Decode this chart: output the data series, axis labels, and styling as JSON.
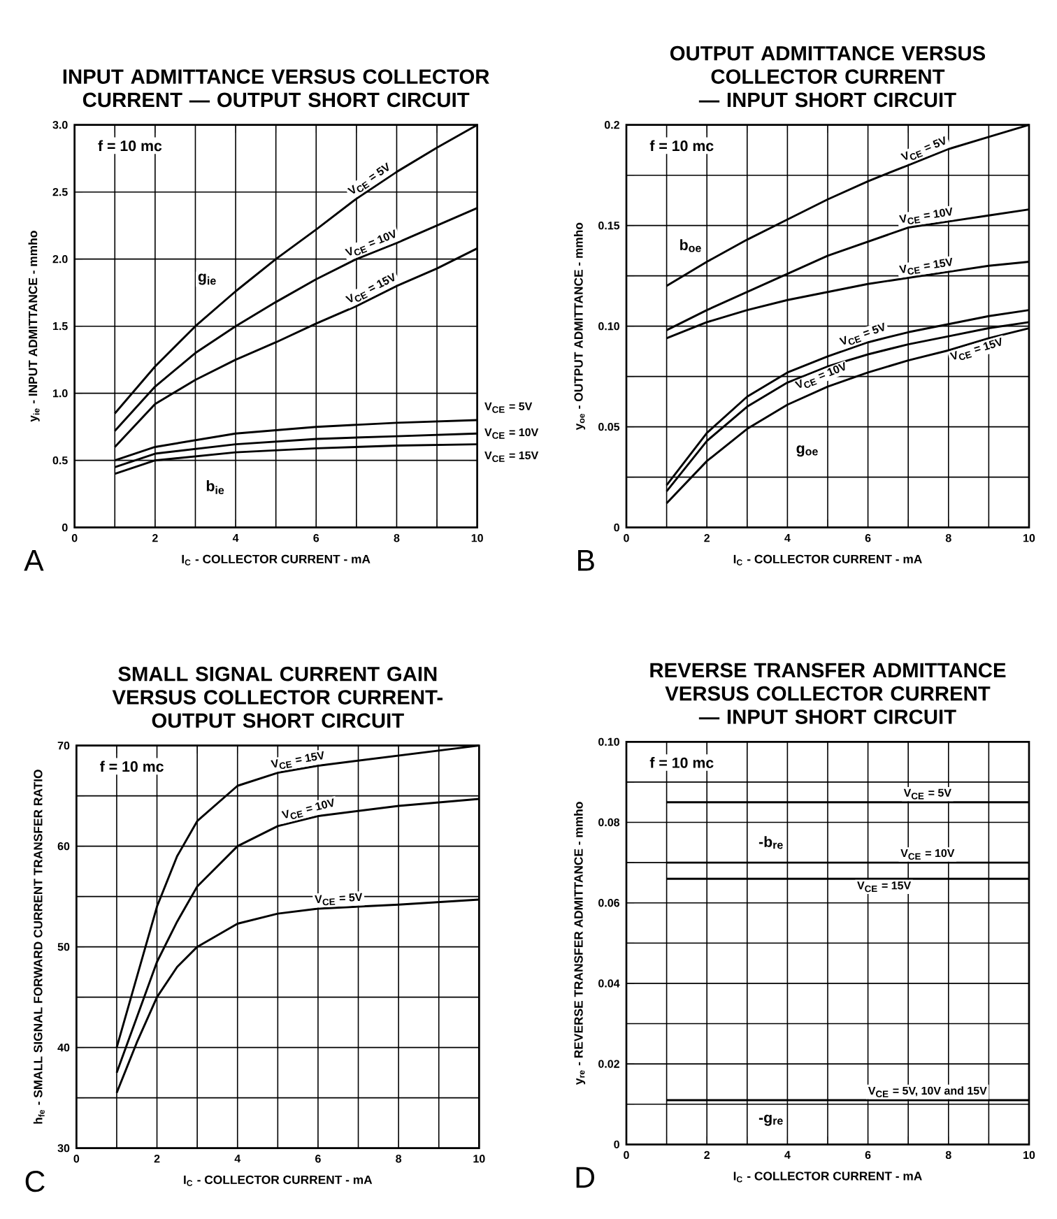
{
  "chart_data": [
    {
      "type": "line",
      "title": "INPUT ADMITTANCE VERSUS COLLECTOR CURRENT — OUTPUT SHORT CIRCUIT",
      "xlabel": "I$_{C}$ - COLLECTOR CURRENT - mA",
      "ylabel": "y$_{ie}$ - INPUT ADMITTANCE - mmho",
      "xlim": [
        0,
        10
      ],
      "ylim": [
        0,
        3
      ],
      "xticks": [
        0,
        {
          "value": 1,
          "label": null
        },
        2,
        {
          "value": 3,
          "label": null
        },
        4,
        {
          "value": 5,
          "label": null
        },
        6,
        {
          "value": 7,
          "label": null
        },
        8,
        {
          "value": 9,
          "label": null
        },
        10
      ],
      "yticks": [
        0,
        0.5,
        {
          "value": 1,
          "label": "1.0"
        },
        1.5,
        {
          "value": 2,
          "label": "2.0"
        },
        2.5,
        {
          "value": 3,
          "label": "3.0"
        }
      ],
      "grid": true,
      "annotations": [
        "f = 10 mc",
        "A",
        "g$_{ie}$",
        "b$_{ie}$"
      ],
      "series": [
        {
          "name": "V$_{CE}$ = 5V",
          "color": "#000000",
          "x": [
            1,
            2,
            3,
            4,
            5,
            6,
            7,
            8,
            9,
            10
          ],
          "values": [
            0.85,
            1.2,
            1.5,
            1.76,
            2.0,
            2.22,
            2.45,
            2.65,
            2.83,
            3.0
          ]
        },
        {
          "name": "V$_{CE}$ = 10V",
          "color": "#000000",
          "x": [
            1,
            2,
            3,
            4,
            5,
            6,
            7,
            8,
            9,
            10
          ],
          "values": [
            0.72,
            1.05,
            1.3,
            1.5,
            1.68,
            1.85,
            2.0,
            2.12,
            2.25,
            2.38
          ]
        },
        {
          "name": "V$_{CE}$ = 15V",
          "color": "#000000",
          "x": [
            1,
            2,
            3,
            4,
            5,
            6,
            7,
            8,
            9,
            10
          ],
          "values": [
            0.6,
            0.92,
            1.1,
            1.25,
            1.38,
            1.52,
            1.65,
            1.8,
            1.93,
            2.08
          ]
        },
        {
          "name": "V$_{CE}$ = 5V",
          "color": "#000000",
          "x": [
            1,
            2,
            4,
            6,
            8,
            10
          ],
          "values": [
            0.5,
            0.6,
            0.7,
            0.75,
            0.78,
            0.8
          ]
        },
        {
          "name": "V$_{CE}$ = 10V",
          "color": "#000000",
          "x": [
            1,
            2,
            4,
            6,
            8,
            10
          ],
          "values": [
            0.45,
            0.55,
            0.62,
            0.66,
            0.68,
            0.7
          ]
        },
        {
          "name": "V$_{CE}$ = 15V",
          "color": "#000000",
          "x": [
            1,
            2,
            4,
            6,
            8,
            10
          ],
          "values": [
            0.4,
            0.5,
            0.56,
            0.59,
            0.61,
            0.62
          ]
        }
      ]
    },
    {
      "type": "line",
      "title": "OUTPUT ADMITTANCE VERSUS COLLECTOR CURRENT — INPUT SHORT CIRCUIT",
      "xlabel": "I$_{C}$ - COLLECTOR CURRENT - mA",
      "ylabel": "y$_{oe}$ - OUTPUT ADMITTANCE - mmho",
      "xlim": [
        0,
        10
      ],
      "ylim": [
        0,
        0.2
      ],
      "xticks": [
        0,
        {
          "value": 1,
          "label": null
        },
        2,
        {
          "value": 3,
          "label": null
        },
        4,
        {
          "value": 5,
          "label": null
        },
        6,
        {
          "value": 7,
          "label": null
        },
        8,
        {
          "value": 9,
          "label": null
        },
        10
      ],
      "yticks": [
        0,
        {
          "value": 0.025,
          "label": null
        },
        0.05,
        {
          "value": 0.075,
          "label": null
        },
        {
          "value": 0.1,
          "label": "0.10"
        },
        {
          "value": 0.125,
          "label": null
        },
        0.15,
        {
          "value": 0.175,
          "label": null
        },
        0.2
      ],
      "grid": true,
      "annotations": [
        "f = 10 mc",
        "B",
        "b$_{oe}$",
        "g$_{oe}$"
      ],
      "series": [
        {
          "name": "V$_{CE}$ = 5V",
          "color": "#000000",
          "x": [
            1,
            2,
            3,
            4,
            5,
            6,
            7,
            8,
            9,
            10
          ],
          "values": [
            0.12,
            0.132,
            0.143,
            0.153,
            0.163,
            0.172,
            0.18,
            0.188,
            0.194,
            0.2
          ]
        },
        {
          "name": "V$_{CE}$ = 10V",
          "color": "#000000",
          "x": [
            1,
            2,
            3,
            4,
            5,
            6,
            7,
            8,
            9,
            10
          ],
          "values": [
            0.098,
            0.108,
            0.117,
            0.126,
            0.135,
            0.142,
            0.149,
            0.152,
            0.155,
            0.158
          ]
        },
        {
          "name": "V$_{CE}$ = 15V",
          "color": "#000000",
          "x": [
            1,
            2,
            3,
            4,
            5,
            6,
            7,
            8,
            9,
            10
          ],
          "values": [
            0.094,
            0.102,
            0.108,
            0.113,
            0.117,
            0.121,
            0.124,
            0.127,
            0.13,
            0.132
          ]
        },
        {
          "name": "V$_{CE}$ = 5V",
          "color": "#000000",
          "x": [
            1,
            2,
            3,
            4,
            5,
            6,
            7,
            8,
            9,
            10
          ],
          "values": [
            0.021,
            0.047,
            0.065,
            0.077,
            0.085,
            0.092,
            0.097,
            0.101,
            0.105,
            0.108
          ]
        },
        {
          "name": "V$_{CE}$ = 10V",
          "color": "#000000",
          "x": [
            1,
            2,
            3,
            4,
            5,
            6,
            7,
            8,
            9,
            10
          ],
          "values": [
            0.018,
            0.043,
            0.06,
            0.072,
            0.08,
            0.086,
            0.091,
            0.095,
            0.099,
            0.102
          ]
        },
        {
          "name": "V$_{CE}$ = 15V",
          "color": "#000000",
          "x": [
            1,
            2,
            3,
            4,
            5,
            6,
            7,
            8,
            9,
            10
          ],
          "values": [
            0.012,
            0.033,
            0.049,
            0.061,
            0.07,
            0.077,
            0.083,
            0.088,
            0.094,
            0.099
          ]
        }
      ]
    },
    {
      "type": "line",
      "title": "SMALL SIGNAL CURRENT GAIN VERSUS COLLECTOR CURRENT-OUTPUT SHORT CIRCUIT",
      "xlabel": "I$_{C}$ - COLLECTOR CURRENT - mA",
      "ylabel": "h$_{fe}$ - SMALL SIGNAL FORWARD CURRENT TRANSFER RATIO",
      "xlim": [
        0,
        10
      ],
      "ylim": [
        30,
        70
      ],
      "xticks": [
        0,
        {
          "value": 1,
          "label": null
        },
        2,
        {
          "value": 3,
          "label": null
        },
        4,
        {
          "value": 5,
          "label": null
        },
        6,
        {
          "value": 7,
          "label": null
        },
        8,
        {
          "value": 9,
          "label": null
        },
        10
      ],
      "yticks": [
        30,
        {
          "value": 35,
          "label": null
        },
        40,
        {
          "value": 45,
          "label": null
        },
        50,
        {
          "value": 55,
          "label": null
        },
        60,
        {
          "value": 65,
          "label": null
        },
        70
      ],
      "grid": true,
      "annotations": [
        "f = 10 mc",
        "C"
      ],
      "series": [
        {
          "name": "V$_{CE}$ = 15V",
          "color": "#000000",
          "x": [
            1,
            1.5,
            2,
            2.5,
            3,
            4,
            5,
            6,
            8,
            10
          ],
          "values": [
            40,
            47,
            54,
            59,
            62.5,
            66,
            67.3,
            68,
            69,
            70
          ]
        },
        {
          "name": "V$_{CE}$ = 10V",
          "color": "#000000",
          "x": [
            1,
            1.5,
            2,
            2.5,
            3,
            4,
            5,
            6,
            8,
            10
          ],
          "values": [
            37.5,
            43,
            48.5,
            52.5,
            56,
            60,
            62,
            63,
            64,
            64.7
          ]
        },
        {
          "name": "V$_{CE}$ = 5V",
          "color": "#000000",
          "x": [
            1,
            1.5,
            2,
            2.5,
            3,
            4,
            5,
            6,
            8,
            10
          ],
          "values": [
            35.5,
            40.5,
            45,
            48,
            50,
            52.3,
            53.3,
            53.8,
            54.2,
            54.7
          ]
        }
      ]
    },
    {
      "type": "line",
      "title": "REVERSE TRANSFER ADMITTANCE VERSUS COLLECTOR CURRENT — INPUT SHORT CIRCUIT",
      "xlabel": "I$_{C}$ - COLLECTOR CURRENT - mA",
      "ylabel": "y$_{re}$ - REVERSE TRANSFER ADMITTANCE - mmho",
      "xlim": [
        0,
        10
      ],
      "ylim": [
        0,
        0.1
      ],
      "xticks": [
        0,
        {
          "value": 1,
          "label": null
        },
        2,
        {
          "value": 3,
          "label": null
        },
        4,
        {
          "value": 5,
          "label": null
        },
        6,
        {
          "value": 7,
          "label": null
        },
        8,
        {
          "value": 9,
          "label": null
        },
        10
      ],
      "yticks": [
        0,
        {
          "value": 0.01,
          "label": null
        },
        0.02,
        {
          "value": 0.03,
          "label": null
        },
        0.04,
        {
          "value": 0.05,
          "label": null
        },
        0.06,
        {
          "value": 0.07,
          "label": null
        },
        0.08,
        {
          "value": 0.09,
          "label": null
        },
        {
          "value": 0.1,
          "label": "0.10"
        }
      ],
      "grid": true,
      "annotations": [
        "f = 10 mc",
        "D",
        "-b$_{re}$",
        "-g$_{re}$"
      ],
      "series": [
        {
          "name": "V$_{CE}$ = 5V",
          "color": "#000000",
          "x": [
            1,
            10
          ],
          "values": [
            0.085,
            0.085
          ]
        },
        {
          "name": "V$_{CE}$ = 10V",
          "color": "#000000",
          "x": [
            1,
            10
          ],
          "values": [
            0.07,
            0.07
          ]
        },
        {
          "name": "V$_{CE}$ = 15V",
          "color": "#000000",
          "x": [
            1,
            10
          ],
          "values": [
            0.066,
            0.066
          ]
        },
        {
          "name": "V$_{CE}$ = 5V, 10V and 15V",
          "color": "#000000",
          "x": [
            1,
            10
          ],
          "values": [
            0.011,
            0.011
          ]
        }
      ]
    }
  ]
}
